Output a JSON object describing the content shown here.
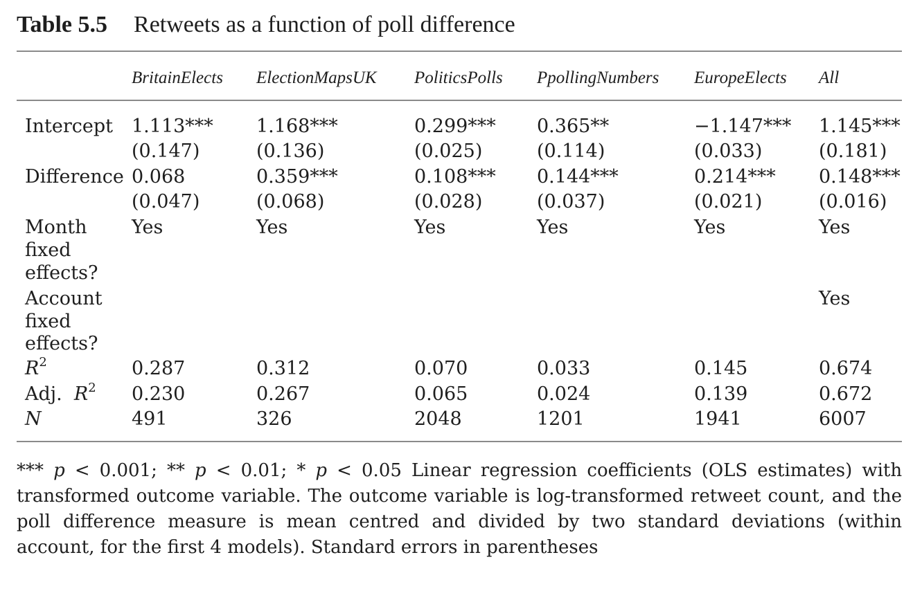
{
  "caption": {
    "number": "Table 5.5",
    "title": "Retweets as a function of poll difference"
  },
  "columns": [
    "BritainElects",
    "ElectionMapsUK",
    "PoliticsPolls",
    "PpollingNumbers",
    "EuropeElects",
    "All"
  ],
  "rows": {
    "intercept": {
      "label": "Intercept",
      "coef": [
        "1.113***",
        "1.168***",
        "0.299***",
        "0.365**",
        "−1.147***",
        "1.145***"
      ],
      "se": [
        "(0.147)",
        "(0.136)",
        "(0.025)",
        "(0.114)",
        "(0.033)",
        "(0.181)"
      ]
    },
    "difference": {
      "label": "Difference",
      "coef": [
        "0.068",
        "0.359***",
        "0.108***",
        "0.144***",
        "0.214***",
        "0.148***"
      ],
      "se": [
        "(0.047)",
        "(0.068)",
        "(0.028)",
        "(0.037)",
        "(0.021)",
        "(0.016)"
      ]
    },
    "month_fe": {
      "label_lines": [
        "Month",
        "fixed",
        "effects?"
      ],
      "values": [
        "Yes",
        "Yes",
        "Yes",
        "Yes",
        "Yes",
        "Yes"
      ]
    },
    "account_fe": {
      "label_lines": [
        "Account",
        "fixed",
        "effects?"
      ],
      "values": [
        "",
        "",
        "",
        "",
        "",
        "Yes"
      ]
    },
    "r2": {
      "label": "R",
      "label_sup": "2",
      "values": [
        "0.287",
        "0.312",
        "0.070",
        "0.033",
        "0.145",
        "0.674"
      ]
    },
    "adj_r2": {
      "label": "Adj.",
      "label_r": "R",
      "label_sup": "2",
      "values": [
        "0.230",
        "0.267",
        "0.065",
        "0.024",
        "0.139",
        "0.672"
      ]
    },
    "n": {
      "label": "N",
      "values": [
        "491",
        "326",
        "2048",
        "1201",
        "1941",
        "6007"
      ]
    }
  },
  "note": {
    "s1_stars": "***",
    "s1_p": "p",
    "s1_rest": "< 0.001;",
    "s2_stars": "**",
    "s2_p": "p",
    "s2_rest": "< 0.01;",
    "s3_stars": "*",
    "s3_p": "p",
    "s3_rest": "< 0.05",
    "text": "Linear regression coefficients (OLS estimates) with transformed outcome variable. The outcome variable is log-transformed retweet count, and the poll difference measure is mean centred and divided by two standard deviations (within account, for the first 4 models). Standard errors in parentheses"
  }
}
